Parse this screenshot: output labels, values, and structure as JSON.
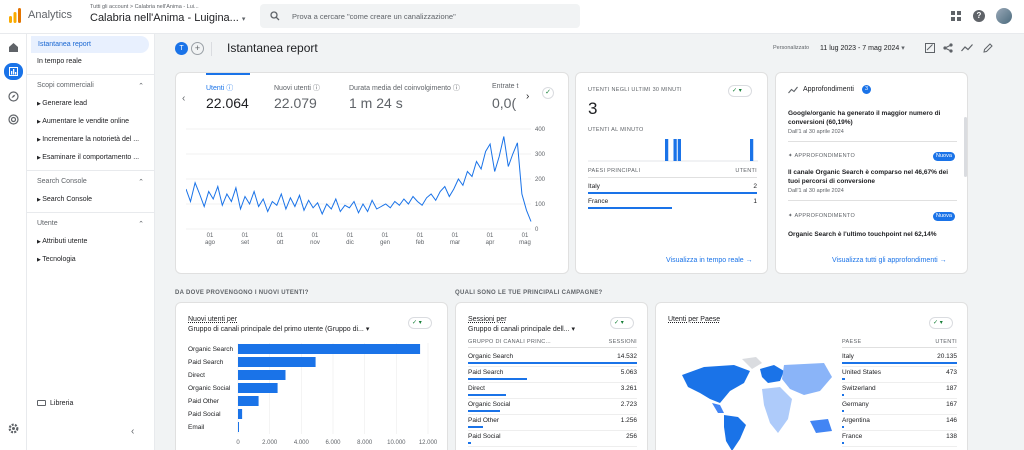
{
  "header": {
    "app_name": "Analytics",
    "breadcrumb": "Tutti gli account > Calabria nell'Anima - Lui...",
    "property": "Calabria nell'Anima - Luigina...",
    "search_placeholder": "Prova a cercare \"come creare un canalizzazione\""
  },
  "sidebar": {
    "items": [
      {
        "label": "Istantanea report"
      },
      {
        "label": "In tempo reale"
      }
    ],
    "sections": [
      {
        "label": "Scopi commerciali",
        "items": [
          "Generare lead",
          "Aumentare le vendite online",
          "Incrementare la notorietà del ...",
          "Esaminare il comportamento ..."
        ]
      },
      {
        "label": "Search Console",
        "items": [
          "Search Console"
        ]
      },
      {
        "label": "Utente",
        "items": [
          "Attributi utente",
          "Tecnologia"
        ]
      }
    ],
    "library": "Libreria"
  },
  "page": {
    "avatar_letter": "T",
    "title": "Istantanea report",
    "date_label": "Personalizzato",
    "date_range": "11 lug 2023 - 7 mag 2024"
  },
  "metrics": [
    {
      "label": "Utenti",
      "value": "22.064"
    },
    {
      "label": "Nuovi utenti",
      "value": "22.079"
    },
    {
      "label": "Durata media del coinvolgimento",
      "value": "1 m 24 s"
    },
    {
      "label": "Entrate t",
      "value": "0,0("
    }
  ],
  "main_chart": {
    "y_ticks": [
      "400",
      "300",
      "200",
      "100",
      "0"
    ],
    "x_ticks": [
      [
        "01",
        "ago"
      ],
      [
        "01",
        "set"
      ],
      [
        "01",
        "ott"
      ],
      [
        "01",
        "nov"
      ],
      [
        "01",
        "dic"
      ],
      [
        "01",
        "gen"
      ],
      [
        "01",
        "feb"
      ],
      [
        "01",
        "mar"
      ],
      [
        "01",
        "apr"
      ],
      [
        "01",
        "mag"
      ]
    ]
  },
  "realtime": {
    "title": "UTENTI NEGLI ULTIMI 30 MINUTI",
    "value": "3",
    "per_minute": "UTENTI AL MINUTO",
    "col_country": "PAESI PRINCIPALI",
    "col_users": "UTENTI",
    "rows": [
      {
        "name": "Italy",
        "value": "2"
      },
      {
        "name": "France",
        "value": "1"
      }
    ],
    "link": "Visualizza in tempo reale"
  },
  "insights": {
    "title": "Approfondimenti",
    "count": "3",
    "items": [
      {
        "label": "",
        "text": "Google/organic ha generato il maggior numero di conversioni (60,19%)",
        "date": "Dall'1 al 30 aprile 2024",
        "badge": ""
      },
      {
        "label": "APPROFONDIMENTO",
        "text": "Il canale Organic Search è comparso nel 46,67% dei tuoi percorsi di conversione",
        "date": "Dall'1 al 30 aprile 2024",
        "badge": "Nuova"
      },
      {
        "label": "APPROFONDIMENTO",
        "text": "Organic Search è l'ultimo touchpoint nel 62,14%",
        "date": "",
        "badge": "Nuova"
      }
    ],
    "link": "Visualizza tutti gli approfondimenti"
  },
  "section_titles": {
    "left": "DA DOVE PROVENGONO I NUOVI UTENTI?",
    "right": "QUALI SONO LE TUE PRINCIPALI CAMPAGNE?"
  },
  "new_users": {
    "title": "Nuovi utenti per",
    "subtitle": "Gruppo di canali principale del primo utente (Gruppo di..."
  },
  "sessions": {
    "title": "Sessioni per",
    "subtitle": "Gruppo di canali principale dell...",
    "col1": "GRUPPO DI CANALI PRINC...",
    "col2": "SESSIONI",
    "rows": [
      {
        "name": "Organic Search",
        "value": "14.532",
        "frac": 1.0
      },
      {
        "name": "Paid Search",
        "value": "5.063",
        "frac": 0.348
      },
      {
        "name": "Direct",
        "value": "3.261",
        "frac": 0.224
      },
      {
        "name": "Organic Social",
        "value": "2.723",
        "frac": 0.187
      },
      {
        "name": "Paid Other",
        "value": "1.256",
        "frac": 0.086
      },
      {
        "name": "Paid Social",
        "value": "256",
        "frac": 0.018
      }
    ]
  },
  "countries": {
    "title": "Utenti per Paese",
    "col1": "PAESE",
    "col2": "UTENTI",
    "rows": [
      {
        "name": "Italy",
        "value": "20.135",
        "frac": 1.0
      },
      {
        "name": "United States",
        "value": "473",
        "frac": 0.023
      },
      {
        "name": "Switzerland",
        "value": "187",
        "frac": 0.009
      },
      {
        "name": "Germany",
        "value": "167",
        "frac": 0.008
      },
      {
        "name": "Argentina",
        "value": "146",
        "frac": 0.007
      },
      {
        "name": "France",
        "value": "138",
        "frac": 0.007
      }
    ]
  },
  "chart_data": [
    {
      "type": "line",
      "title": "",
      "series": [
        {
          "name": "Utenti",
          "values": [
            160,
            110,
            185,
            140,
            90,
            150,
            120,
            170,
            95,
            140,
            110,
            165,
            80,
            130,
            100,
            150,
            90,
            120,
            70,
            110,
            95,
            140,
            80,
            125,
            90,
            135,
            75,
            115,
            85,
            105,
            60,
            100,
            80,
            120,
            70,
            95,
            85,
            110,
            65,
            100,
            70,
            115,
            80,
            90,
            100,
            85,
            110,
            95,
            120,
            100,
            130,
            110,
            95,
            125,
            140,
            115,
            150,
            170,
            130,
            160,
            200,
            175,
            230,
            210,
            270,
            240,
            310,
            340,
            230,
            290,
            370,
            250,
            300,
            345,
            140,
            75,
            30
          ]
        }
      ],
      "ylim": [
        0,
        400
      ]
    },
    {
      "type": "bar",
      "title": "Nuovi utenti per",
      "categories": [
        "Organic Search",
        "Paid Search",
        "Direct",
        "Organic Social",
        "Paid Other",
        "Paid Social",
        "Email"
      ],
      "values": [
        11500,
        4900,
        3000,
        2500,
        1300,
        260,
        10
      ],
      "x_ticks": [
        "0",
        "2.000",
        "4.000",
        "6.000",
        "8.000",
        "10.000",
        "12.000"
      ],
      "xlim": [
        0,
        12000
      ]
    },
    {
      "type": "bar",
      "title": "Utenti al minuto",
      "values": [
        0,
        0,
        0,
        0,
        0,
        0,
        0,
        0,
        0,
        0,
        0,
        0,
        0,
        0,
        0,
        0,
        0,
        0,
        1,
        0,
        1,
        1,
        0,
        0,
        0,
        0,
        0,
        0,
        0,
        0,
        0,
        0,
        0,
        0,
        0,
        0,
        0,
        0,
        1,
        0
      ],
      "ylim": [
        0,
        1
      ]
    }
  ]
}
